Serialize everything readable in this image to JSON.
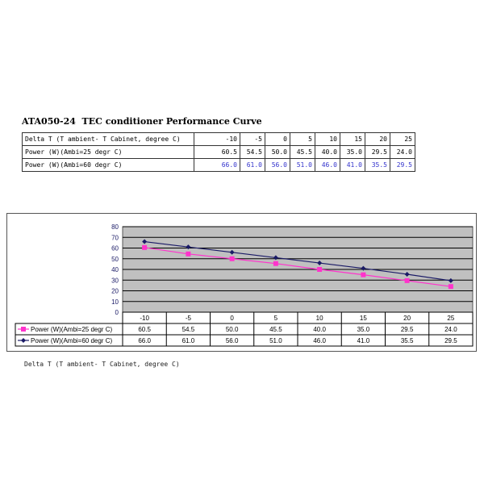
{
  "title": "ATA050-24  TEC conditioner Performance Curve",
  "table": {
    "header_label": "Delta T (T ambient- T Cabinet, degree C)",
    "x": [
      "-10",
      "-5",
      "0",
      "5",
      "10",
      "15",
      "20",
      "25"
    ],
    "rows": [
      {
        "label": "Power (W)(Ambi=25 degr C)",
        "values": [
          "60.5",
          "54.5",
          "50.0",
          "45.5",
          "40.0",
          "35.0",
          "29.5",
          "24.0"
        ],
        "color": "#000000"
      },
      {
        "label": "Power (W)(Ambi=60 degr C)",
        "values": [
          "66.0",
          "61.0",
          "56.0",
          "51.0",
          "46.0",
          "41.0",
          "35.5",
          "29.5"
        ],
        "color": "#3333cc"
      }
    ]
  },
  "chart_data": {
    "type": "line",
    "categories": [
      "-10",
      "-5",
      "0",
      "5",
      "10",
      "15",
      "20",
      "25"
    ],
    "series": [
      {
        "name": "Power (W)(Ambi=25 degr C)",
        "values": [
          60.5,
          54.5,
          50.0,
          45.5,
          40.0,
          35.0,
          29.5,
          24.0
        ],
        "color": "#ff33cc",
        "marker": "square"
      },
      {
        "name": "Power (W)(Ambi=60 degr C)",
        "values": [
          66.0,
          61.0,
          56.0,
          51.0,
          46.0,
          41.0,
          35.5,
          29.5
        ],
        "color": "#1a1a66",
        "marker": "diamond"
      }
    ],
    "series_labels": [
      [
        "60.5",
        "54.5",
        "50.0",
        "45.5",
        "40.0",
        "35.0",
        "29.5",
        "24.0"
      ],
      [
        "66.0",
        "61.0",
        "56.0",
        "51.0",
        "46.0",
        "41.0",
        "35.5",
        "29.5"
      ]
    ],
    "yticks": [
      "0",
      "10",
      "20",
      "30",
      "40",
      "50",
      "60",
      "70",
      "80"
    ],
    "ylim": [
      0,
      80
    ],
    "grid": true,
    "plot_background": "#c0c0c0",
    "legend": "data-table-left",
    "xlabel": "Delta T (T ambient- T Cabinet, degree C)"
  }
}
